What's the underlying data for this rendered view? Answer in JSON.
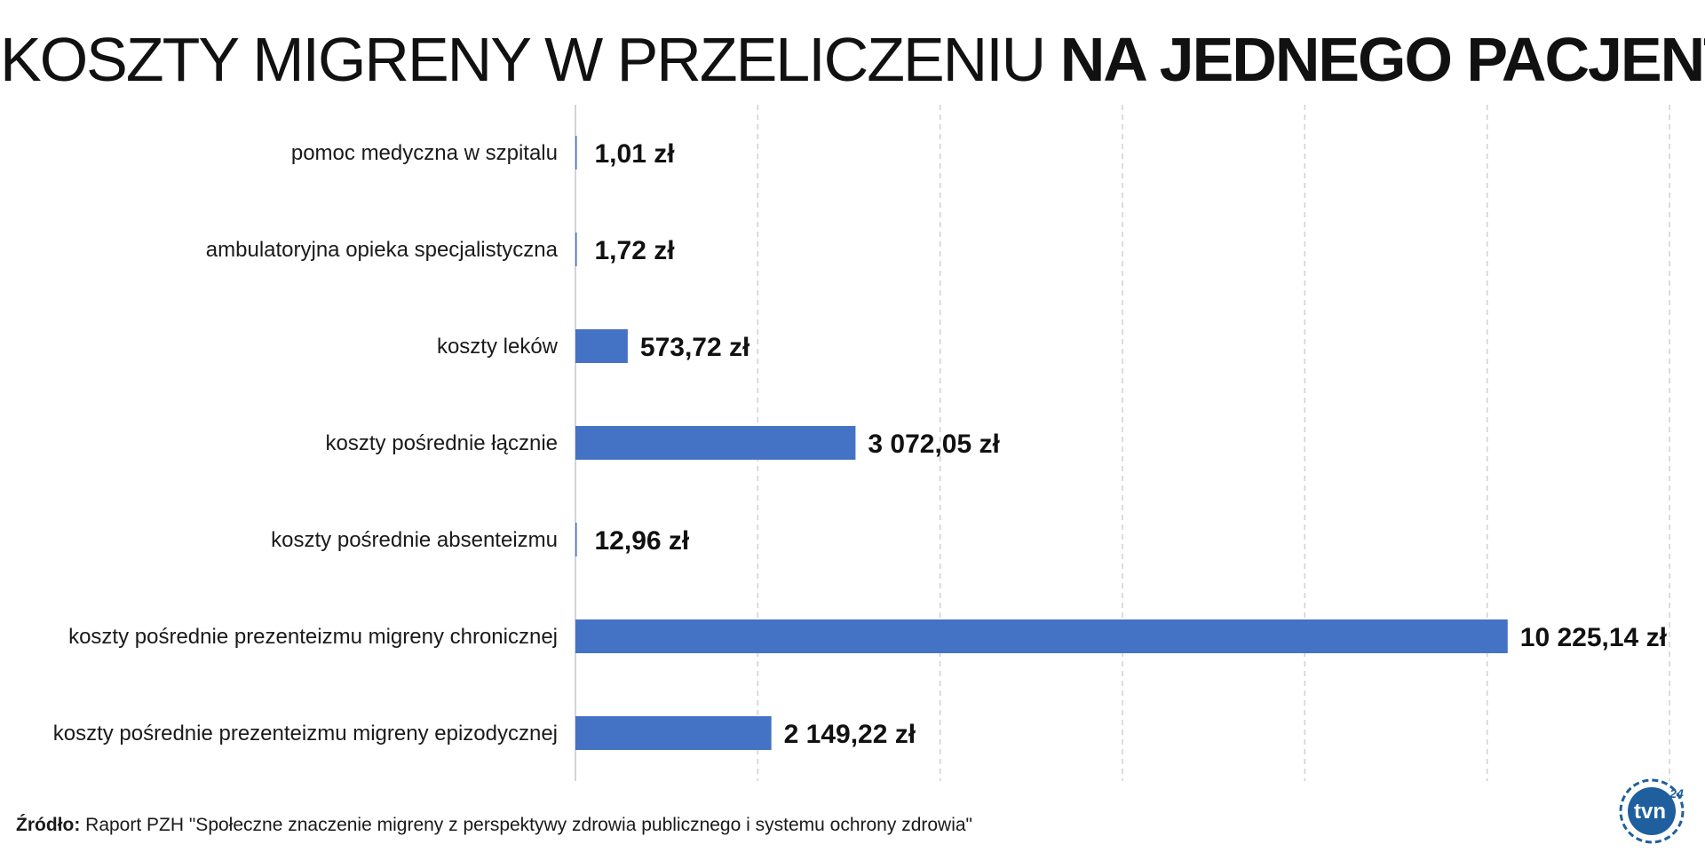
{
  "title": {
    "part_light": "KOSZTY MIGRENY W PRZELICZENIU",
    "part_bold": "NA JEDNEGO PACJENTA"
  },
  "chart_data": {
    "type": "bar",
    "orientation": "horizontal",
    "categories": [
      "pomoc medyczna w szpitalu",
      "ambulatoryjna opieka specjalistyczna",
      "koszty leków",
      "koszty pośrednie łącznie",
      "koszty pośrednie absenteizmu",
      "koszty pośrednie prezenteizmu migreny chronicznej",
      "koszty pośrednie prezenteizmu migreny epizodycznej"
    ],
    "values": [
      1.01,
      1.72,
      573.72,
      3072.05,
      12.96,
      10225.14,
      2149.22
    ],
    "value_labels": [
      "1,01 zł",
      "1,72 zł",
      "573,72 zł",
      "3 072,05 zł",
      "12,96 zł",
      "10 225,14 zł",
      "2 149,22 zł"
    ],
    "xlim": [
      0,
      12000
    ],
    "grid": "vertical dashed",
    "bar_color": "#4472c4",
    "grid_color": "#d0d0d0",
    "axis_color": "#d4d4d4"
  },
  "source": {
    "label": "Źródło:",
    "text": "Raport PZH \"Społeczne znaczenie migreny z perspektywy zdrowia publicznego i systemu ochrony zdrowia\""
  },
  "logo": {
    "text": "tvn",
    "sup": "24",
    "color": "#1f5f9e"
  }
}
